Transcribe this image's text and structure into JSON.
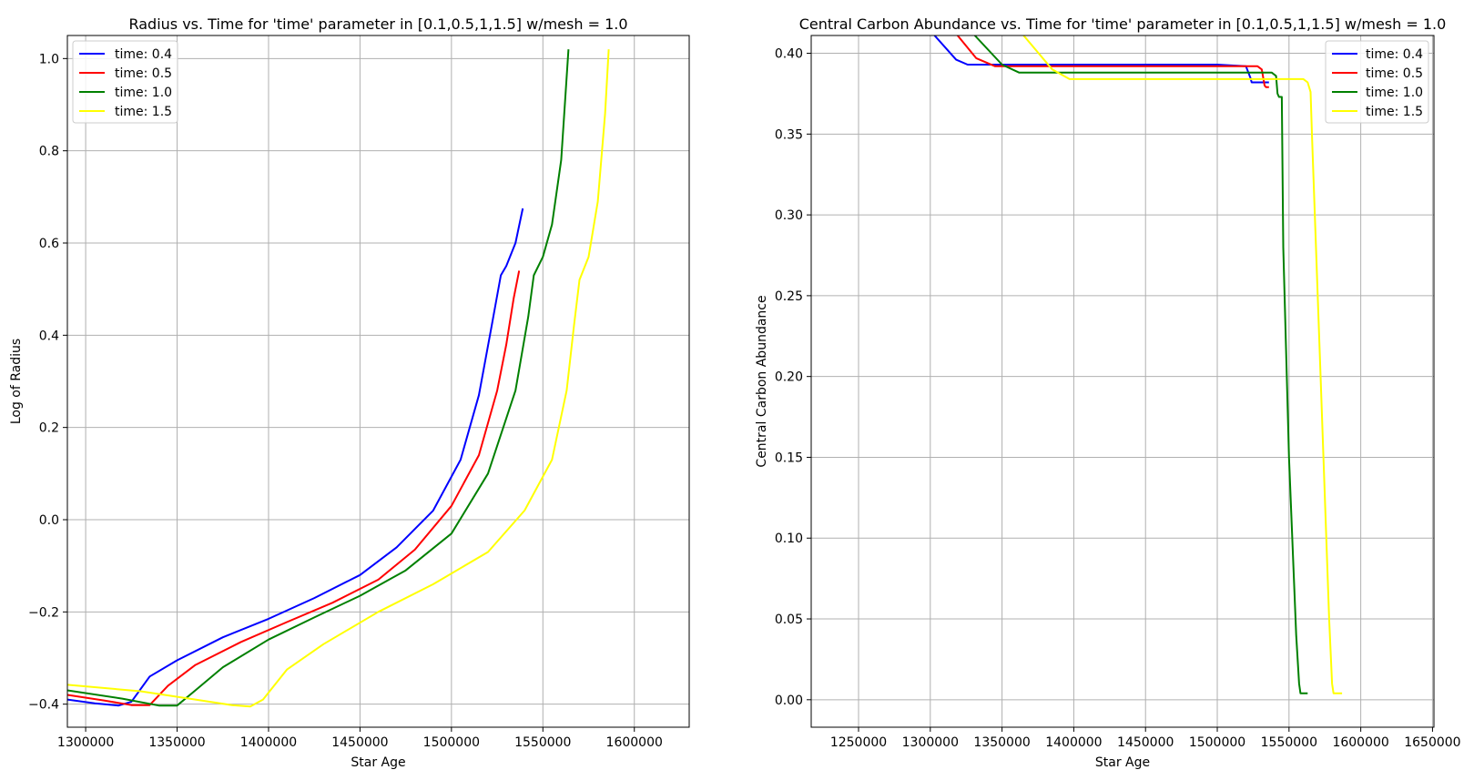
{
  "chart_data": [
    {
      "type": "line",
      "title": "Radius vs. Time for 'time' parameter in [0.1,0.5,1,1.5] w/mesh = 1.0",
      "xlabel": "Star Age",
      "ylabel": "Log of Radius",
      "xlim": [
        1290000,
        1630000
      ],
      "ylim": [
        -0.45,
        1.05
      ],
      "xticks": [
        1300000,
        1350000,
        1400000,
        1450000,
        1500000,
        1550000,
        1600000
      ],
      "xtick_labels": [
        "1300000",
        "1350000",
        "1400000",
        "1450000",
        "1500000",
        "1550000",
        "1600000"
      ],
      "yticks": [
        -0.4,
        -0.2,
        0.0,
        0.2,
        0.4,
        0.6,
        0.8,
        1.0
      ],
      "ytick_labels": [
        "−0.4",
        "−0.2",
        "0.0",
        "0.2",
        "0.4",
        "0.6",
        "0.8",
        "1.0"
      ],
      "grid": true,
      "legend_position": "top-left",
      "series": [
        {
          "name": "time: 0.4",
          "color": "#0000ff",
          "x": [
            1290000,
            1305000,
            1318000,
            1325000,
            1335000,
            1350000,
            1375000,
            1400000,
            1425000,
            1450000,
            1470000,
            1490000,
            1505000,
            1515000,
            1522000,
            1527000,
            1530000,
            1535000,
            1539000
          ],
          "y": [
            -0.39,
            -0.398,
            -0.403,
            -0.395,
            -0.34,
            -0.305,
            -0.255,
            -0.215,
            -0.17,
            -0.12,
            -0.06,
            0.02,
            0.13,
            0.27,
            0.42,
            0.53,
            0.55,
            0.6,
            0.675
          ]
        },
        {
          "name": "time: 0.5",
          "color": "#ff0000",
          "x": [
            1290000,
            1310000,
            1325000,
            1335000,
            1345000,
            1360000,
            1385000,
            1410000,
            1435000,
            1460000,
            1480000,
            1500000,
            1515000,
            1525000,
            1530000,
            1534000,
            1537000
          ],
          "y": [
            -0.38,
            -0.392,
            -0.402,
            -0.402,
            -0.36,
            -0.315,
            -0.265,
            -0.222,
            -0.18,
            -0.13,
            -0.065,
            0.03,
            0.14,
            0.28,
            0.38,
            0.48,
            0.54
          ]
        },
        {
          "name": "time: 1.0",
          "color": "#008000",
          "x": [
            1290000,
            1320000,
            1340000,
            1350000,
            1360000,
            1375000,
            1400000,
            1425000,
            1450000,
            1475000,
            1500000,
            1520000,
            1535000,
            1542000,
            1545000,
            1550000,
            1555000,
            1560000,
            1562000,
            1564000
          ],
          "y": [
            -0.37,
            -0.388,
            -0.403,
            -0.403,
            -0.37,
            -0.32,
            -0.26,
            -0.212,
            -0.165,
            -0.11,
            -0.03,
            0.1,
            0.28,
            0.44,
            0.53,
            0.57,
            0.64,
            0.78,
            0.9,
            1.02
          ]
        },
        {
          "name": "time: 1.5",
          "color": "#ffff00",
          "x": [
            1290000,
            1330000,
            1360000,
            1380000,
            1390000,
            1397000,
            1410000,
            1430000,
            1460000,
            1490000,
            1520000,
            1540000,
            1555000,
            1563000,
            1567000,
            1570000,
            1575000,
            1580000,
            1584000,
            1586000
          ],
          "y": [
            -0.358,
            -0.372,
            -0.39,
            -0.402,
            -0.405,
            -0.39,
            -0.325,
            -0.27,
            -0.2,
            -0.14,
            -0.07,
            0.02,
            0.13,
            0.28,
            0.42,
            0.52,
            0.57,
            0.69,
            0.88,
            1.02
          ]
        }
      ]
    },
    {
      "type": "line",
      "title": "Central Carbon Abundance vs. Time for 'time' parameter in [0.1,0.5,1,1.5] w/mesh = 1.0",
      "xlabel": "Star Age",
      "ylabel": "Central Carbon Abundance",
      "xlim": [
        1217000,
        1651000
      ],
      "ylim": [
        -0.017,
        0.411
      ],
      "xticks": [
        1250000,
        1300000,
        1350000,
        1400000,
        1450000,
        1500000,
        1550000,
        1600000,
        1650000
      ],
      "xtick_labels": [
        "1250000",
        "1300000",
        "1350000",
        "1400000",
        "1450000",
        "1500000",
        "1550000",
        "1600000",
        "1650000"
      ],
      "yticks": [
        0.0,
        0.05,
        0.1,
        0.15,
        0.2,
        0.25,
        0.3,
        0.35,
        0.4
      ],
      "ytick_labels": [
        "0.00",
        "0.05",
        "0.10",
        "0.15",
        "0.20",
        "0.25",
        "0.30",
        "0.35",
        "0.40"
      ],
      "grid": true,
      "legend_position": "top-right",
      "series": [
        {
          "name": "time: 0.4",
          "color": "#0000ff",
          "x": [
            1303000,
            1318000,
            1326000,
            1340000,
            1400000,
            1500000,
            1520000,
            1523000,
            1524000,
            1530000,
            1531000,
            1536000
          ],
          "y": [
            0.411,
            0.396,
            0.393,
            0.393,
            0.393,
            0.393,
            0.392,
            0.385,
            0.382,
            0.382,
            0.382,
            0.382
          ]
        },
        {
          "name": "time: 0.5",
          "color": "#ff0000",
          "x": [
            1319000,
            1332000,
            1345000,
            1400000,
            1500000,
            1528000,
            1531000,
            1533000,
            1534000,
            1536000
          ],
          "y": [
            0.411,
            0.397,
            0.392,
            0.392,
            0.392,
            0.392,
            0.39,
            0.38,
            0.379,
            0.379
          ]
        },
        {
          "name": "time: 1.0",
          "color": "#008000",
          "x": [
            1331000,
            1350000,
            1362000,
            1400000,
            1500000,
            1538000,
            1541000,
            1542000,
            1543000,
            1545000,
            1546000,
            1550000,
            1555000,
            1557000,
            1558000,
            1563000
          ],
          "y": [
            0.411,
            0.393,
            0.388,
            0.388,
            0.388,
            0.388,
            0.386,
            0.375,
            0.373,
            0.373,
            0.28,
            0.15,
            0.04,
            0.01,
            0.004,
            0.004
          ]
        },
        {
          "name": "time: 1.5",
          "color": "#ffff00",
          "x": [
            1365000,
            1385000,
            1397000,
            1450000,
            1540000,
            1560000,
            1563000,
            1565000,
            1566000,
            1572000,
            1578000,
            1580000,
            1581000,
            1587000
          ],
          "y": [
            0.411,
            0.39,
            0.384,
            0.384,
            0.384,
            0.384,
            0.382,
            0.376,
            0.35,
            0.2,
            0.05,
            0.01,
            0.004,
            0.004
          ]
        }
      ]
    }
  ]
}
